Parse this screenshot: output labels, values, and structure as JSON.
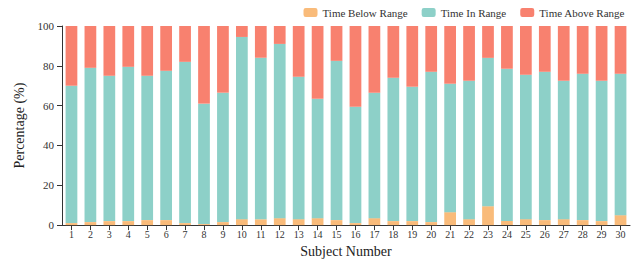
{
  "chart_data": {
    "type": "bar",
    "stacked": true,
    "grid": false,
    "legend": "top-right",
    "x_label": "Subject Number",
    "y_label": "Percentage (%)",
    "categories": [
      "1",
      "2",
      "3",
      "4",
      "5",
      "6",
      "7",
      "8",
      "9",
      "10",
      "11",
      "12",
      "13",
      "14",
      "15",
      "16",
      "17",
      "18",
      "19",
      "20",
      "21",
      "22",
      "23",
      "24",
      "25",
      "26",
      "27",
      "28",
      "29",
      "30"
    ],
    "ylim": [
      0,
      100
    ],
    "yticks": [
      0,
      20,
      40,
      60,
      80,
      100
    ],
    "series": [
      {
        "name": "Time Below Range",
        "color": "#f9bb7a",
        "values": [
          1,
          1.5,
          2,
          2,
          2.5,
          2.5,
          1,
          0.5,
          1.5,
          3,
          3,
          3.5,
          3,
          3.5,
          2.5,
          1,
          3.5,
          2,
          2,
          1.5,
          6.5,
          3,
          9.5,
          2,
          3,
          2.5,
          3,
          2.5,
          2,
          5
        ]
      },
      {
        "name": "Time In Range",
        "color": "#8dd0c8",
        "values": [
          69,
          77.5,
          73,
          77.5,
          72.5,
          75,
          81,
          60.5,
          65,
          91.5,
          81,
          87.5,
          71.5,
          60,
          80,
          58.5,
          63,
          72,
          67.5,
          75.5,
          64.5,
          69.5,
          74.5,
          76.5,
          72.5,
          74.5,
          69.5,
          73.5,
          70.5,
          71
        ]
      },
      {
        "name": "Time Above Range",
        "color": "#f8816f",
        "values": [
          30,
          21,
          25,
          20.5,
          25,
          22.5,
          18,
          39,
          33.5,
          5.5,
          16,
          9,
          25.5,
          36.5,
          17.5,
          40.5,
          33.5,
          26,
          30.5,
          23,
          29,
          27.5,
          16,
          21.5,
          24.5,
          23,
          27.5,
          24,
          27.5,
          24
        ]
      }
    ]
  }
}
